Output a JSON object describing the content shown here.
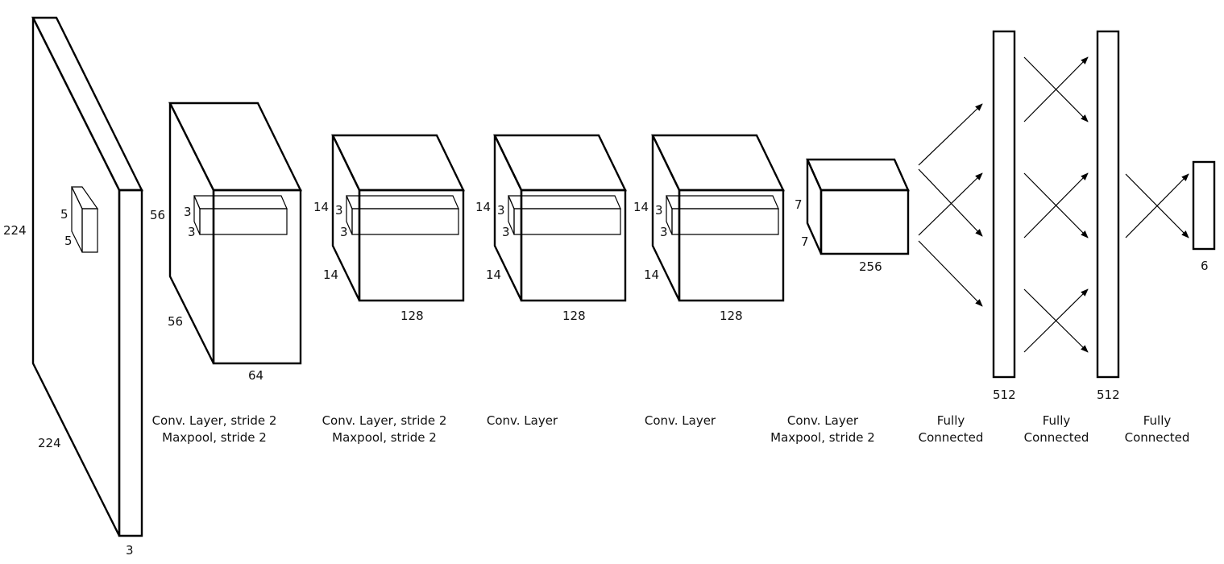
{
  "input": {
    "height": "224",
    "width": "224",
    "depth": "3",
    "kernel_h": "5",
    "kernel_w": "5"
  },
  "conv1": {
    "height": "56",
    "width": "56",
    "depth": "64",
    "kernel_h": "3",
    "kernel_w": "3",
    "caption": [
      "Conv. Layer, stride 2",
      "Maxpool, stride 2"
    ]
  },
  "conv2": {
    "height": "14",
    "width": "14",
    "depth": "128",
    "kernel_h": "3",
    "kernel_w": "3",
    "caption": [
      "Conv. Layer, stride 2",
      "Maxpool, stride 2"
    ]
  },
  "conv3": {
    "height": "14",
    "width": "14",
    "depth": "128",
    "kernel_h": "3",
    "kernel_w": "3",
    "caption": [
      "Conv. Layer"
    ]
  },
  "conv4": {
    "height": "14",
    "width": "14",
    "depth": "128",
    "kernel_h": "3",
    "kernel_w": "3",
    "caption": [
      "Conv. Layer"
    ]
  },
  "conv5": {
    "height": "7",
    "width": "7",
    "depth": "256",
    "caption": [
      "Conv. Layer",
      "Maxpool, stride 2"
    ]
  },
  "fc1": {
    "size": "512",
    "caption": [
      "Fully",
      "Connected"
    ]
  },
  "fc2": {
    "size": "512",
    "caption": [
      "Fully",
      "Connected"
    ]
  },
  "output": {
    "size": "6",
    "caption": [
      "Fully",
      "Connected"
    ]
  }
}
